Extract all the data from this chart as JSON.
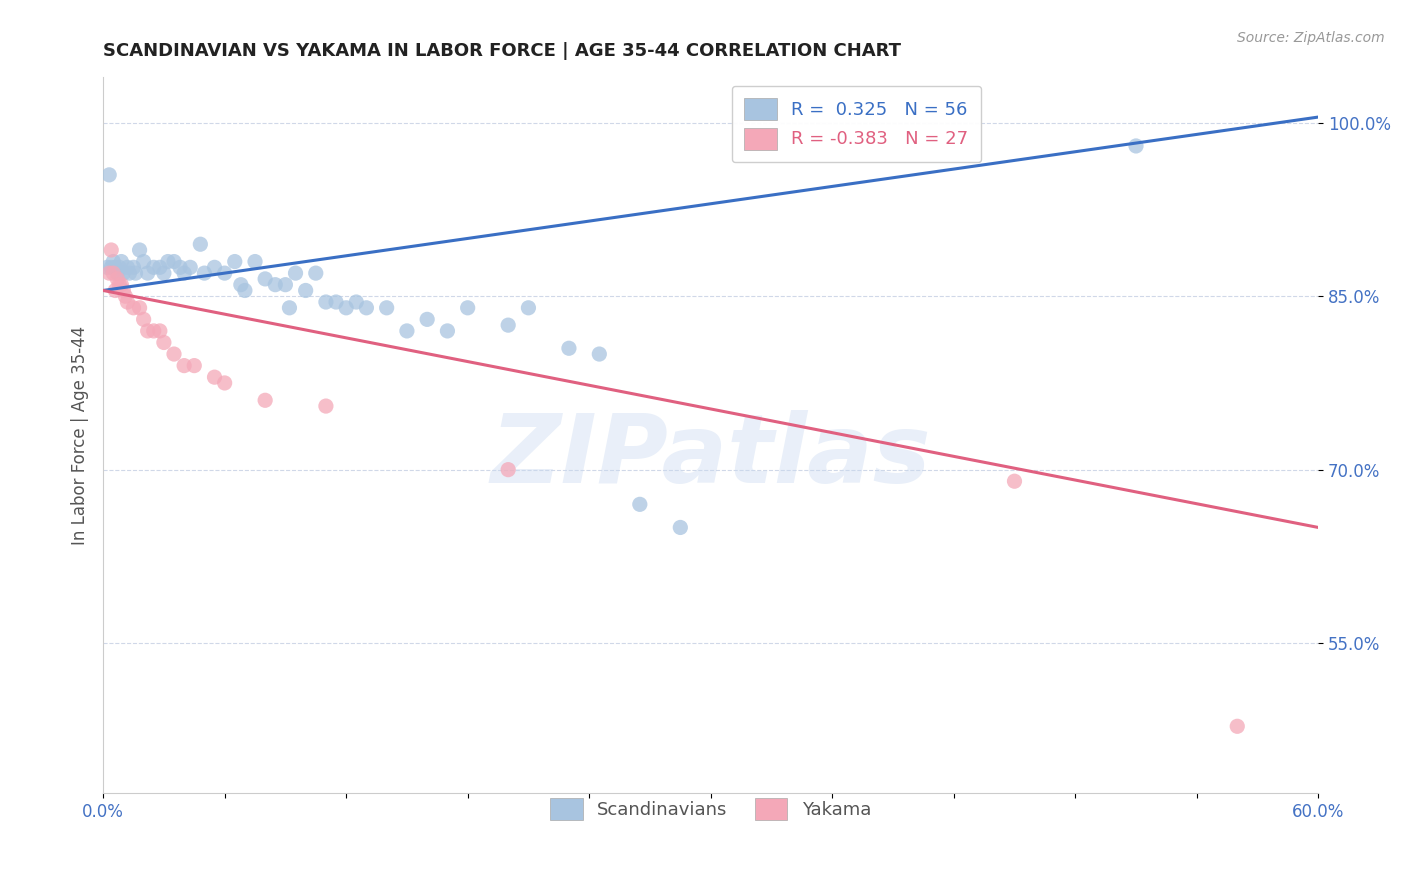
{
  "title": "SCANDINAVIAN VS YAKAMA IN LABOR FORCE | AGE 35-44 CORRELATION CHART",
  "source_text": "Source: ZipAtlas.com",
  "ylabel": "In Labor Force | Age 35-44",
  "xlim": [
    0.0,
    0.6
  ],
  "ylim": [
    0.42,
    1.04
  ],
  "xticks": [
    0.0,
    0.06,
    0.12,
    0.18,
    0.24,
    0.3,
    0.36,
    0.42,
    0.48,
    0.54,
    0.6
  ],
  "xticklabels": [
    "0.0%",
    "",
    "",
    "",
    "",
    "",
    "",
    "",
    "",
    "",
    "60.0%"
  ],
  "yticks": [
    0.55,
    0.7,
    0.85,
    1.0
  ],
  "yticklabels": [
    "55.0%",
    "70.0%",
    "85.0%",
    "100.0%"
  ],
  "scand_color": "#a8c4e0",
  "yakama_color": "#f4a8b8",
  "scand_line_color": "#3a6fc4",
  "yakama_line_color": "#e06080",
  "legend_scand_R": "0.325",
  "legend_scand_N": "56",
  "legend_yakama_R": "-0.383",
  "legend_yakama_N": "27",
  "watermark": "ZIPatlas",
  "background_color": "#ffffff",
  "grid_color": "#d0d8e8",
  "scand_points": [
    [
      0.002,
      0.875
    ],
    [
      0.003,
      0.955
    ],
    [
      0.004,
      0.875
    ],
    [
      0.005,
      0.88
    ],
    [
      0.006,
      0.875
    ],
    [
      0.007,
      0.87
    ],
    [
      0.008,
      0.875
    ],
    [
      0.009,
      0.88
    ],
    [
      0.01,
      0.87
    ],
    [
      0.012,
      0.875
    ],
    [
      0.013,
      0.87
    ],
    [
      0.015,
      0.875
    ],
    [
      0.016,
      0.87
    ],
    [
      0.018,
      0.89
    ],
    [
      0.02,
      0.88
    ],
    [
      0.022,
      0.87
    ],
    [
      0.025,
      0.875
    ],
    [
      0.028,
      0.875
    ],
    [
      0.03,
      0.87
    ],
    [
      0.032,
      0.88
    ],
    [
      0.035,
      0.88
    ],
    [
      0.038,
      0.875
    ],
    [
      0.04,
      0.87
    ],
    [
      0.043,
      0.875
    ],
    [
      0.048,
      0.895
    ],
    [
      0.05,
      0.87
    ],
    [
      0.055,
      0.875
    ],
    [
      0.06,
      0.87
    ],
    [
      0.065,
      0.88
    ],
    [
      0.068,
      0.86
    ],
    [
      0.07,
      0.855
    ],
    [
      0.075,
      0.88
    ],
    [
      0.08,
      0.865
    ],
    [
      0.085,
      0.86
    ],
    [
      0.09,
      0.86
    ],
    [
      0.092,
      0.84
    ],
    [
      0.095,
      0.87
    ],
    [
      0.1,
      0.855
    ],
    [
      0.105,
      0.87
    ],
    [
      0.11,
      0.845
    ],
    [
      0.115,
      0.845
    ],
    [
      0.12,
      0.84
    ],
    [
      0.125,
      0.845
    ],
    [
      0.13,
      0.84
    ],
    [
      0.14,
      0.84
    ],
    [
      0.15,
      0.82
    ],
    [
      0.16,
      0.83
    ],
    [
      0.17,
      0.82
    ],
    [
      0.18,
      0.84
    ],
    [
      0.2,
      0.825
    ],
    [
      0.21,
      0.84
    ],
    [
      0.23,
      0.805
    ],
    [
      0.245,
      0.8
    ],
    [
      0.265,
      0.67
    ],
    [
      0.285,
      0.65
    ],
    [
      0.51,
      0.98
    ]
  ],
  "yakama_points": [
    [
      0.003,
      0.87
    ],
    [
      0.004,
      0.89
    ],
    [
      0.005,
      0.87
    ],
    [
      0.006,
      0.855
    ],
    [
      0.007,
      0.865
    ],
    [
      0.008,
      0.86
    ],
    [
      0.009,
      0.86
    ],
    [
      0.01,
      0.855
    ],
    [
      0.011,
      0.85
    ],
    [
      0.012,
      0.845
    ],
    [
      0.015,
      0.84
    ],
    [
      0.018,
      0.84
    ],
    [
      0.02,
      0.83
    ],
    [
      0.022,
      0.82
    ],
    [
      0.025,
      0.82
    ],
    [
      0.028,
      0.82
    ],
    [
      0.03,
      0.81
    ],
    [
      0.035,
      0.8
    ],
    [
      0.04,
      0.79
    ],
    [
      0.045,
      0.79
    ],
    [
      0.055,
      0.78
    ],
    [
      0.06,
      0.775
    ],
    [
      0.08,
      0.76
    ],
    [
      0.11,
      0.755
    ],
    [
      0.2,
      0.7
    ],
    [
      0.45,
      0.69
    ],
    [
      0.56,
      0.478
    ]
  ],
  "scand_trend_x": [
    0.0,
    0.6
  ],
  "scand_trend_y": [
    0.855,
    1.005
  ],
  "yakama_trend_x": [
    0.0,
    0.6
  ],
  "yakama_trend_y": [
    0.855,
    0.65
  ]
}
